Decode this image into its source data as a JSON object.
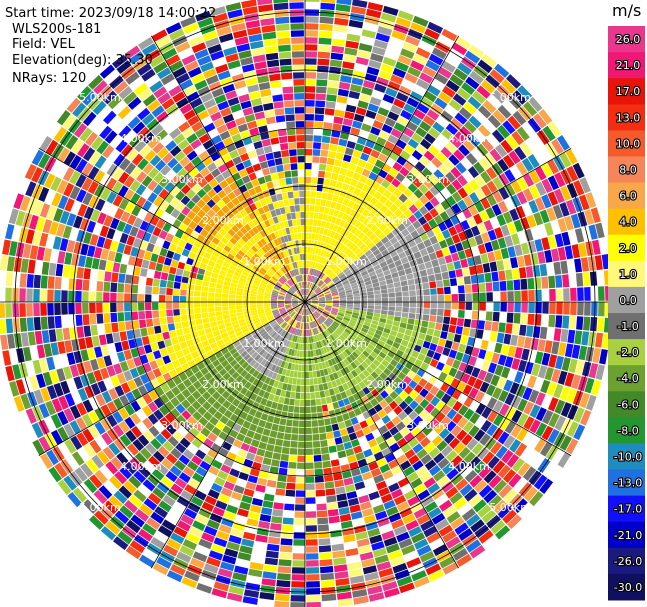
{
  "header": {
    "start_time": "Start time: 2023/09/18 14:00:22",
    "instrument": "WLS200s-181",
    "field": "Field: VEL",
    "elevation": "Elevation(deg): 35.30",
    "nrays": "NRays: 120"
  },
  "colorbar": {
    "units": "m/s",
    "ticks": [
      "26.0",
      "21.0",
      "17.0",
      "13.0",
      "10.0",
      "8.0",
      "6.0",
      "4.0",
      "2.0",
      "1.0",
      "0.0",
      "-1.0",
      "-2.0",
      "-4.0",
      "-6.0",
      "-8.0",
      "-10.0",
      "-13.0",
      "-17.0",
      "-21.0",
      "-26.0",
      "-30.0"
    ],
    "colors": [
      "#e8378c",
      "#f01874",
      "#e8140a",
      "#f42c10",
      "#f45a2a",
      "#f6865a",
      "#f8a848",
      "#ffc000",
      "#ffff00",
      "#fff878",
      "#a0a0a0",
      "#707070",
      "#a8d040",
      "#6ca030",
      "#428a28",
      "#229630",
      "#1f8cbe",
      "#1f70e0",
      "#1010ff",
      "#0000c8",
      "#1a1a80",
      "#101060"
    ]
  },
  "chart_data": {
    "type": "ppi",
    "field": "VEL",
    "units": "m/s",
    "nrays": 120,
    "elevation_deg": 35.3,
    "range_ring_labels": [
      "1.00km",
      "2.00km",
      "3.00km",
      "4.00km",
      "5.00km"
    ],
    "range_rings_km": [
      1,
      2,
      3,
      4,
      5
    ],
    "max_range_km": 5.3,
    "colorbar_ticks": [
      26.0,
      21.0,
      17.0,
      13.0,
      10.0,
      8.0,
      6.0,
      4.0,
      2.0,
      1.0,
      0.0,
      -1.0,
      -2.0,
      -4.0,
      -6.0,
      -8.0,
      -10.0,
      -13.0,
      -17.0,
      -21.0,
      -26.0,
      -30.0
    ],
    "signal_pattern": "coherent velocity field within about 2.5-3 km: positive (yellow/orange, +2 to +6 m/s) to the north-west, near zero (grey) to the east and south-west, negative (green, -2 to -6 m/s) to the south; beyond that, noisy random velocities"
  }
}
